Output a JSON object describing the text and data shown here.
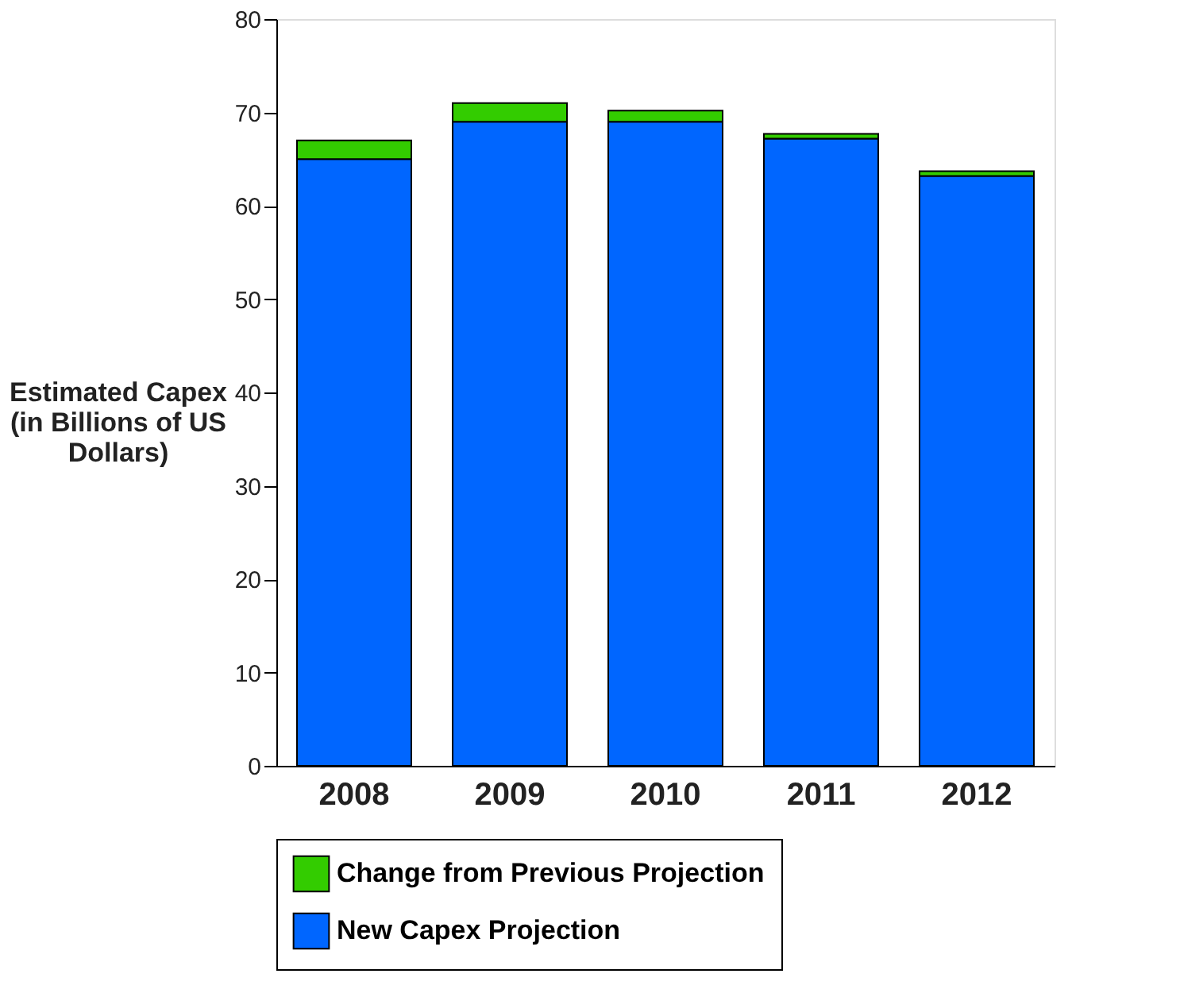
{
  "chart_data": {
    "type": "bar",
    "stacked": true,
    "ylabel": "Estimated Capex (in Billions of US Dollars)",
    "categories": [
      "2008",
      "2009",
      "2010",
      "2011",
      "2012"
    ],
    "series": [
      {
        "name": "New Capex Projection",
        "color": "#0066ff",
        "values": [
          65,
          69,
          69,
          67.2,
          63.2
        ]
      },
      {
        "name": "Change from Previous Projection",
        "color": "#33cc00",
        "values": [
          2,
          2,
          1.2,
          0.5,
          0.5
        ]
      }
    ],
    "ylim": [
      0,
      80
    ],
    "yticks": [
      0,
      10,
      20,
      30,
      40,
      50,
      60,
      70,
      80
    ],
    "grid": false,
    "legend": "bottom"
  }
}
